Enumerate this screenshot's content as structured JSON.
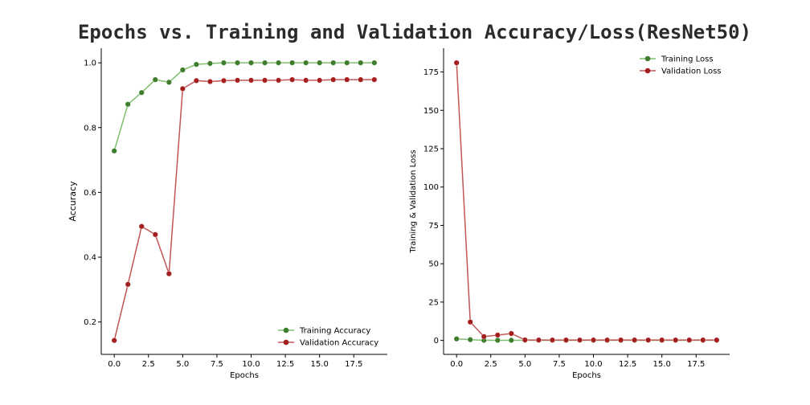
{
  "suptitle": "Epochs vs. Training and Validation Accuracy/Loss(ResNet50)",
  "colors": {
    "train_line": "#7fbf6e",
    "train_marker": "#3e7d2c",
    "val_line": "#c05555",
    "val_marker": "#a51e1e"
  },
  "chart_data": [
    {
      "type": "line",
      "title": "",
      "xlabel": "Epochs",
      "ylabel": "Accuracy",
      "xlim": [
        -0.95,
        19.95
      ],
      "ylim": [
        0.1,
        1.045
      ],
      "xticks": [
        0.0,
        2.5,
        5.0,
        7.5,
        10.0,
        12.5,
        15.0,
        17.5
      ],
      "xtick_labels": [
        "0.0",
        "2.5",
        "5.0",
        "7.5",
        "10.0",
        "12.5",
        "15.0",
        "17.5"
      ],
      "yticks": [
        0.2,
        0.4,
        0.6,
        0.8,
        1.0
      ],
      "ytick_labels": [
        "0.2",
        "0.4",
        "0.6",
        "0.8",
        "1.0"
      ],
      "legend_position": "lower-right",
      "grid": false,
      "x": [
        0,
        1,
        2,
        3,
        4,
        5,
        6,
        7,
        8,
        9,
        10,
        11,
        12,
        13,
        14,
        15,
        16,
        17,
        18,
        19
      ],
      "series": [
        {
          "name": "Training Accuracy",
          "color_key": "train",
          "values": [
            0.728,
            0.872,
            0.908,
            0.948,
            0.94,
            0.978,
            0.995,
            0.998,
            1.0,
            1.0,
            1.0,
            1.0,
            1.0,
            1.0,
            1.0,
            1.0,
            1.0,
            1.0,
            1.0,
            1.0
          ]
        },
        {
          "name": "Validation Accuracy",
          "color_key": "val",
          "values": [
            0.143,
            0.316,
            0.495,
            0.47,
            0.349,
            0.92,
            0.945,
            0.942,
            0.945,
            0.946,
            0.946,
            0.946,
            0.946,
            0.948,
            0.946,
            0.946,
            0.948,
            0.948,
            0.948,
            0.948
          ]
        }
      ]
    },
    {
      "type": "line",
      "title": "",
      "xlabel": "Epochs",
      "ylabel": "Training & Validation Loss",
      "xlim": [
        -0.95,
        19.95
      ],
      "ylim": [
        -9.1,
        190.5
      ],
      "xticks": [
        0.0,
        2.5,
        5.0,
        7.5,
        10.0,
        12.5,
        15.0,
        17.5
      ],
      "xtick_labels": [
        "0.0",
        "2.5",
        "5.0",
        "7.5",
        "10.0",
        "12.5",
        "15.0",
        "17.5"
      ],
      "yticks": [
        0,
        25,
        50,
        75,
        100,
        125,
        150,
        175
      ],
      "ytick_labels": [
        "0",
        "25",
        "50",
        "75",
        "100",
        "125",
        "150",
        "175"
      ],
      "legend_position": "top-right",
      "grid": false,
      "x": [
        0,
        1,
        2,
        3,
        4,
        5,
        6,
        7,
        8,
        9,
        10,
        11,
        12,
        13,
        14,
        15,
        16,
        17,
        18,
        19
      ],
      "series": [
        {
          "name": "Training Loss",
          "color_key": "train",
          "values": [
            1.0,
            0.5,
            0.1,
            0.1,
            0.1,
            0.1,
            0.05,
            0.05,
            0.05,
            0.05,
            0.05,
            0.05,
            0.05,
            0.05,
            0.05,
            0.05,
            0.05,
            0.05,
            0.05,
            0.05
          ]
        },
        {
          "name": "Validation Loss",
          "color_key": "val",
          "values": [
            181.0,
            12.0,
            2.5,
            3.5,
            4.5,
            0.3,
            0.25,
            0.25,
            0.25,
            0.25,
            0.25,
            0.25,
            0.25,
            0.25,
            0.25,
            0.25,
            0.25,
            0.25,
            0.25,
            0.25
          ]
        }
      ]
    }
  ]
}
